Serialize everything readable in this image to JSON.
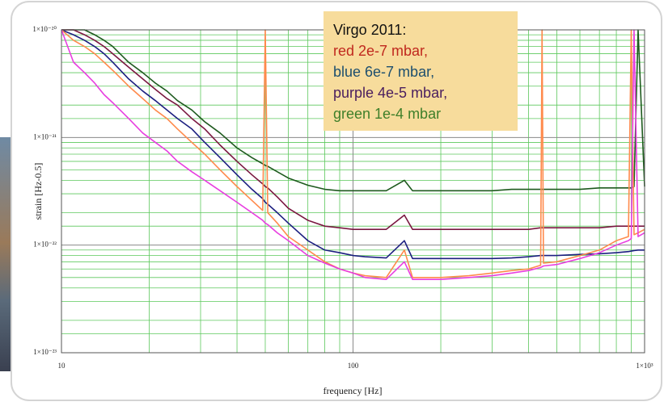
{
  "chart_data": {
    "type": "line",
    "legend_title": "Virgo 2011:",
    "xlabel": "frequency [Hz]",
    "ylabel": "strain [Hz-0.5]",
    "xscale": "log",
    "yscale": "log",
    "grid": true,
    "legend_position": "upper center",
    "xlim": [
      10,
      1000
    ],
    "ylim": [
      1e-23,
      1e-20
    ],
    "xticks": [
      10,
      100,
      {
        "value": 1000,
        "label": "1×10³"
      }
    ],
    "yticks": [
      {
        "value": 1e-23,
        "label": "1×10⁻²³"
      },
      {
        "value": 1e-22,
        "label": "1×10⁻²²"
      },
      {
        "value": 1e-21,
        "label": "1×10⁻²¹"
      },
      {
        "value": 1e-20,
        "label": "1×10⁻²⁰"
      }
    ],
    "x": [
      10,
      11,
      12,
      13,
      14,
      15,
      17,
      19,
      21,
      23,
      25,
      28,
      31,
      35,
      40,
      45,
      49,
      50,
      51,
      55,
      60,
      70,
      80,
      90,
      100,
      110,
      130,
      150,
      160,
      170,
      200,
      250,
      300,
      350,
      400,
      440,
      445,
      450,
      500,
      600,
      700,
      800,
      880,
      900,
      920,
      950,
      1000
    ],
    "series": [
      {
        "name": "red 2e-7 mbar,",
        "color": "#ff8a4c",
        "label_color": "#c0281e",
        "values": [
          1e-20,
          8e-21,
          7e-21,
          6e-21,
          5e-21,
          4.2e-21,
          3e-21,
          2.3e-21,
          1.8e-21,
          1.5e-21,
          1.2e-21,
          9e-22,
          7e-22,
          5e-22,
          3.5e-22,
          2.6e-22,
          2.1e-22,
          1e-20,
          2e-22,
          1.6e-22,
          1.2e-22,
          9e-23,
          7e-23,
          6e-23,
          5.5e-23,
          5.2e-23,
          5e-23,
          9e-23,
          5e-23,
          5e-23,
          5e-23,
          5.2e-23,
          5.5e-23,
          5.8e-23,
          6e-23,
          6.5e-23,
          1e-20,
          6.8e-23,
          7e-23,
          8e-23,
          9e-23,
          1.1e-22,
          1.2e-22,
          1e-20,
          1.25e-22,
          1.3e-22,
          1.4e-22
        ]
      },
      {
        "name": "blue 6e-7 mbar,",
        "color": "#1c1f80",
        "label_color": "#1d4f6e",
        "values": [
          1e-20,
          9e-21,
          8e-21,
          7e-21,
          6e-21,
          5e-21,
          3.5e-21,
          2.7e-21,
          2.2e-21,
          1.8e-21,
          1.5e-21,
          1.2e-21,
          9e-22,
          6.5e-22,
          4.5e-22,
          3.3e-22,
          2.7e-22,
          2.5e-22,
          2.4e-22,
          2e-22,
          1.6e-22,
          1.1e-22,
          9e-23,
          8.5e-23,
          8e-23,
          7.8e-23,
          7.6e-23,
          1.1e-22,
          7.5e-23,
          7.5e-23,
          7.5e-23,
          7.5e-23,
          7.5e-23,
          7.6e-23,
          7.8e-23,
          8e-23,
          8e-23,
          8e-23,
          8e-23,
          8.2e-23,
          8.3e-23,
          8.5e-23,
          8.7e-23,
          8.8e-23,
          8.9e-23,
          9e-23,
          9e-23
        ]
      },
      {
        "name": "purple 4e-5 mbar,",
        "color": "#e83ee0",
        "label_color": "#4a1e5e",
        "values": [
          1e-20,
          5e-21,
          4e-21,
          3.2e-21,
          2.5e-21,
          2.1e-21,
          1.5e-21,
          1.1e-21,
          9e-22,
          7.5e-22,
          6e-22,
          4.8e-22,
          4e-22,
          3.2e-22,
          2.5e-22,
          2e-22,
          1.7e-22,
          1.6e-22,
          1.55e-22,
          1.3e-22,
          1.1e-22,
          8e-23,
          6.8e-23,
          6e-23,
          5.5e-23,
          5e-23,
          4.8e-23,
          7e-23,
          4.8e-23,
          4.8e-23,
          4.8e-23,
          5e-23,
          5.2e-23,
          5.5e-23,
          5.8e-23,
          6.2e-23,
          6.3e-23,
          6.4e-23,
          6.6e-23,
          7.5e-23,
          8.5e-23,
          1e-22,
          1.1e-22,
          1.15e-22,
          1e-20,
          1.2e-22,
          1.3e-22
        ]
      },
      {
        "name": "green 1e-4 mbar",
        "color": "#1e5a1e",
        "label_color": "#3f7f2a",
        "values": [
          1e-20,
          1e-20,
          1e-20,
          9e-21,
          8e-21,
          7e-21,
          5e-21,
          4e-21,
          3.2e-21,
          2.7e-21,
          2.2e-21,
          1.8e-21,
          1.4e-21,
          1.1e-21,
          8e-22,
          6.5e-22,
          5.7e-22,
          5.5e-22,
          5.4e-22,
          4.8e-22,
          4.2e-22,
          3.6e-22,
          3.3e-22,
          3.2e-22,
          3.2e-22,
          3.2e-22,
          3.2e-22,
          4e-22,
          3.2e-22,
          3.2e-22,
          3.2e-22,
          3.2e-22,
          3.2e-22,
          3.3e-22,
          3.3e-22,
          3.3e-22,
          3.3e-22,
          3.3e-22,
          3.3e-22,
          3.3e-22,
          3.4e-22,
          3.4e-22,
          3.4e-22,
          3.4e-22,
          3.5e-22,
          1e-20,
          3.5e-22
        ]
      },
      {
        "color": "#7a1840",
        "values": [
          1e-20,
          1e-20,
          9e-21,
          8e-21,
          7e-21,
          6e-21,
          4.5e-21,
          3.5e-21,
          2.8e-21,
          2.3e-21,
          2e-21,
          1.5e-21,
          1.2e-21,
          8.5e-22,
          6e-22,
          4.5e-22,
          3.7e-22,
          3.5e-22,
          3.4e-22,
          2.8e-22,
          2.2e-22,
          1.7e-22,
          1.5e-22,
          1.45e-22,
          1.4e-22,
          1.4e-22,
          1.4e-22,
          1.9e-22,
          1.4e-22,
          1.4e-22,
          1.4e-22,
          1.4e-22,
          1.4e-22,
          1.4e-22,
          1.4e-22,
          1.45e-22,
          1.45e-22,
          1.45e-22,
          1.45e-22,
          1.45e-22,
          1.45e-22,
          1.5e-22,
          1.5e-22,
          1.5e-22,
          1.5e-22,
          1.5e-22,
          1.5e-22
        ]
      }
    ]
  }
}
